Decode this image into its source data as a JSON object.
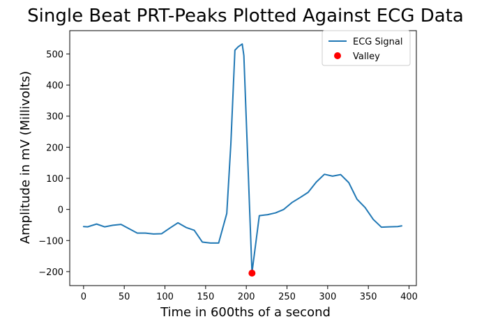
{
  "chart_data": {
    "type": "line",
    "title": "Single Beat PRT-Peaks Plotted Against ECG Data",
    "xlabel": "Time in 600ths of a second",
    "ylabel": "Amplitude in mV (Millivolts)",
    "xlim": [
      -17,
      409
    ],
    "ylim": [
      -245,
      575
    ],
    "xticks": [
      0,
      50,
      100,
      150,
      200,
      250,
      300,
      350,
      400
    ],
    "yticks": [
      -200,
      -100,
      0,
      100,
      200,
      300,
      400,
      500
    ],
    "grid": false,
    "legend_position": "top-right",
    "series": [
      {
        "name": "ECG Signal",
        "kind": "line",
        "color": "#1f77b4",
        "x": [
          0,
          5,
          16,
          26,
          36,
          46,
          56,
          66,
          76,
          86,
          96,
          106,
          116,
          126,
          136,
          146,
          156,
          166,
          176,
          181,
          186,
          190,
          195,
          197,
          207,
          216,
          226,
          236,
          246,
          256,
          266,
          276,
          286,
          296,
          306,
          316,
          326,
          336,
          346,
          356,
          366,
          376,
          386,
          391
        ],
        "y": [
          -55,
          -56,
          -47,
          -56,
          -51,
          -48,
          -62,
          -76,
          -76,
          -79,
          -78,
          -60,
          -43,
          -58,
          -67,
          -105,
          -108,
          -108,
          -13,
          210,
          512,
          523,
          532,
          495,
          -203,
          -20,
          -17,
          -11,
          0,
          22,
          38,
          55,
          88,
          113,
          107,
          112,
          86,
          33,
          6,
          -32,
          -57,
          -56,
          -55,
          -53
        ]
      },
      {
        "name": "Valley",
        "kind": "scatter",
        "color": "#ff0000",
        "x": [
          207
        ],
        "y": [
          -205
        ]
      }
    ]
  }
}
